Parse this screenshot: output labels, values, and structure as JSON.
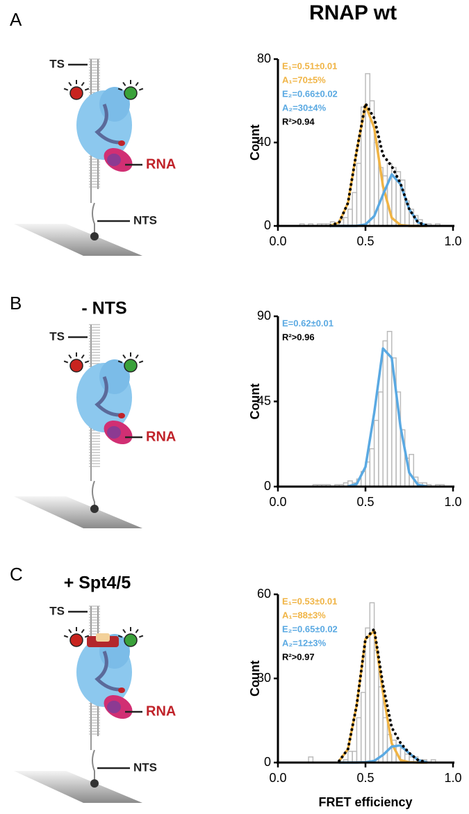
{
  "title": "RNAP wt",
  "panels": [
    {
      "letter": "A",
      "labels": [
        "TS",
        "RNA",
        "NTS"
      ]
    },
    {
      "letter": "B",
      "heading": "- NTS",
      "labels": [
        "TS",
        "RNA"
      ]
    },
    {
      "letter": "C",
      "heading": "+ Spt4/5",
      "labels": [
        "TS",
        "RNA",
        "NTS"
      ]
    }
  ],
  "chart_data": [
    {
      "type": "histogram",
      "ylabel": "Count",
      "bins": [
        0.125,
        0.15,
        0.175,
        0.2,
        0.225,
        0.25,
        0.275,
        0.3,
        0.325,
        0.35,
        0.375,
        0.4,
        0.425,
        0.45,
        0.475,
        0.5,
        0.525,
        0.55,
        0.575,
        0.6,
        0.625,
        0.65,
        0.675,
        0.7,
        0.725,
        0.75,
        0.775,
        0.8,
        0.825,
        0.85,
        0.875,
        0.9,
        0.925,
        0.95
      ],
      "counts": [
        1,
        0,
        1,
        0,
        1,
        1,
        1,
        2,
        1,
        3,
        4,
        8,
        16,
        30,
        57,
        73,
        60,
        40,
        28,
        24,
        30,
        28,
        26,
        22,
        12,
        8,
        5,
        3,
        1,
        1,
        0,
        1,
        0
      ],
      "bar_color": "#bbbbbb",
      "fit_x": [
        0.3,
        0.35,
        0.4,
        0.45,
        0.5,
        0.55,
        0.6,
        0.65,
        0.7,
        0.75,
        0.8,
        0.85
      ],
      "fits": [
        {
          "color": "#f0b445",
          "style": "solid",
          "values": [
            0.1,
            1.7,
            11,
            36,
            58,
            47,
            19,
            3.9,
            0.4,
            0,
            0,
            0
          ]
        },
        {
          "color": "#5aa9e2",
          "style": "solid",
          "values": [
            0,
            0,
            0,
            0,
            0.7,
            4.7,
            15,
            24.7,
            20,
            8,
            1.7,
            0.2
          ]
        },
        {
          "color": "#000000",
          "style": "dotted",
          "values": [
            0.1,
            1.7,
            11,
            36,
            58.7,
            51.7,
            34,
            28.6,
            20.4,
            8,
            1.7,
            0.2
          ]
        }
      ],
      "annotations": [
        {
          "text": "E₁=0.51±0.01",
          "color": "#f0b445"
        },
        {
          "text": "A₁=70±5%",
          "color": "#f0b445"
        },
        {
          "text": "E₂=0.66±0.02",
          "color": "#5aa9e2"
        },
        {
          "text": "A₂=30±4%",
          "color": "#5aa9e2"
        },
        {
          "text": "R²>0.94",
          "color": "#000000"
        }
      ],
      "xlim": [
        0,
        1
      ],
      "xticks": [
        {
          "value": 0,
          "label": "0.0"
        },
        {
          "value": 0.5,
          "label": "0.5"
        },
        {
          "value": 1,
          "label": "1.0"
        }
      ],
      "ylim": [
        0,
        80
      ],
      "yticks": [
        0,
        40,
        80
      ]
    },
    {
      "type": "histogram",
      "ylabel": "Count",
      "bins": [
        0.125,
        0.15,
        0.175,
        0.2,
        0.225,
        0.25,
        0.275,
        0.3,
        0.325,
        0.35,
        0.375,
        0.4,
        0.425,
        0.45,
        0.475,
        0.5,
        0.525,
        0.55,
        0.575,
        0.6,
        0.625,
        0.65,
        0.675,
        0.7,
        0.725,
        0.75,
        0.775,
        0.8,
        0.825,
        0.85,
        0.875,
        0.9,
        0.925,
        0.95
      ],
      "counts": [
        0,
        0,
        0,
        1,
        1,
        1,
        1,
        0,
        1,
        1,
        2,
        3,
        2,
        4,
        8,
        13,
        20,
        35,
        50,
        77,
        82,
        68,
        50,
        30,
        15,
        17,
        5,
        2,
        2,
        1,
        0,
        1,
        1
      ],
      "bar_color": "#bbbbbb",
      "fit_x": [
        0.4,
        0.45,
        0.5,
        0.55,
        0.6,
        0.65,
        0.7,
        0.75,
        0.8,
        0.85
      ],
      "fits": [
        {
          "color": "#5aa9e2",
          "style": "solid",
          "values": [
            0.1,
            1.4,
            10.4,
            39,
            73,
            68,
            31.6,
            7.3,
            0.9,
            0.1
          ]
        }
      ],
      "annotations": [
        {
          "text": "E=0.62±0.01",
          "color": "#5aa9e2"
        },
        {
          "text": "R²>0.96",
          "color": "#000000"
        }
      ],
      "xlim": [
        0,
        1
      ],
      "xticks": [
        {
          "value": 0,
          "label": "0.0"
        },
        {
          "value": 0.5,
          "label": "0.5"
        },
        {
          "value": 1,
          "label": "1.0"
        }
      ],
      "ylim": [
        0,
        90
      ],
      "yticks": [
        0,
        45,
        90
      ]
    },
    {
      "type": "histogram",
      "ylabel": "Count",
      "xlabel": "FRET efficiency",
      "bins": [
        0.125,
        0.15,
        0.175,
        0.2,
        0.225,
        0.25,
        0.275,
        0.3,
        0.325,
        0.35,
        0.375,
        0.4,
        0.425,
        0.45,
        0.475,
        0.5,
        0.525,
        0.55,
        0.575,
        0.6,
        0.625,
        0.65,
        0.675,
        0.7,
        0.725,
        0.75,
        0.775,
        0.8,
        0.825,
        0.85,
        0.875,
        0.9,
        0.925,
        0.95
      ],
      "counts": [
        0,
        0,
        2,
        0,
        0,
        0,
        0,
        0,
        0,
        0,
        1,
        4,
        4,
        16,
        25,
        48,
        57,
        40,
        27,
        16,
        10,
        8,
        6,
        5,
        3,
        2,
        2,
        1,
        1,
        0,
        1,
        0,
        0
      ],
      "bar_color": "#bbbbbb",
      "fit_x": [
        0.35,
        0.4,
        0.45,
        0.5,
        0.55,
        0.6,
        0.65,
        0.7,
        0.75,
        0.8,
        0.85
      ],
      "fits": [
        {
          "color": "#f0b445",
          "style": "solid",
          "values": [
            0.6,
            4.8,
            20.5,
            44,
            47,
            25,
            6.8,
            0.9,
            0.1,
            0,
            0
          ]
        },
        {
          "color": "#5aa9e2",
          "style": "solid",
          "values": [
            0,
            0,
            0,
            0.1,
            0.6,
            2.7,
            5.7,
            6.1,
            3.3,
            0.9,
            0.1
          ]
        },
        {
          "color": "#000000",
          "style": "dotted",
          "values": [
            0.6,
            4.8,
            20.5,
            44.1,
            47.6,
            27.7,
            12.5,
            7,
            3.4,
            0.9,
            0.1
          ]
        }
      ],
      "annotations": [
        {
          "text": "E₁=0.53±0.01",
          "color": "#f0b445"
        },
        {
          "text": "A₁=88±3%",
          "color": "#f0b445"
        },
        {
          "text": "E₂=0.65±0.02",
          "color": "#5aa9e2"
        },
        {
          "text": "A₂=12±3%",
          "color": "#5aa9e2"
        },
        {
          "text": "R²>0.97",
          "color": "#000000"
        }
      ],
      "xlim": [
        0,
        1
      ],
      "xticks": [
        {
          "value": 0,
          "label": "0.0"
        },
        {
          "value": 0.5,
          "label": "0.5"
        },
        {
          "value": 1,
          "label": "1.0"
        }
      ],
      "ylim": [
        0,
        60
      ],
      "yticks": [
        0,
        30,
        60
      ]
    }
  ]
}
